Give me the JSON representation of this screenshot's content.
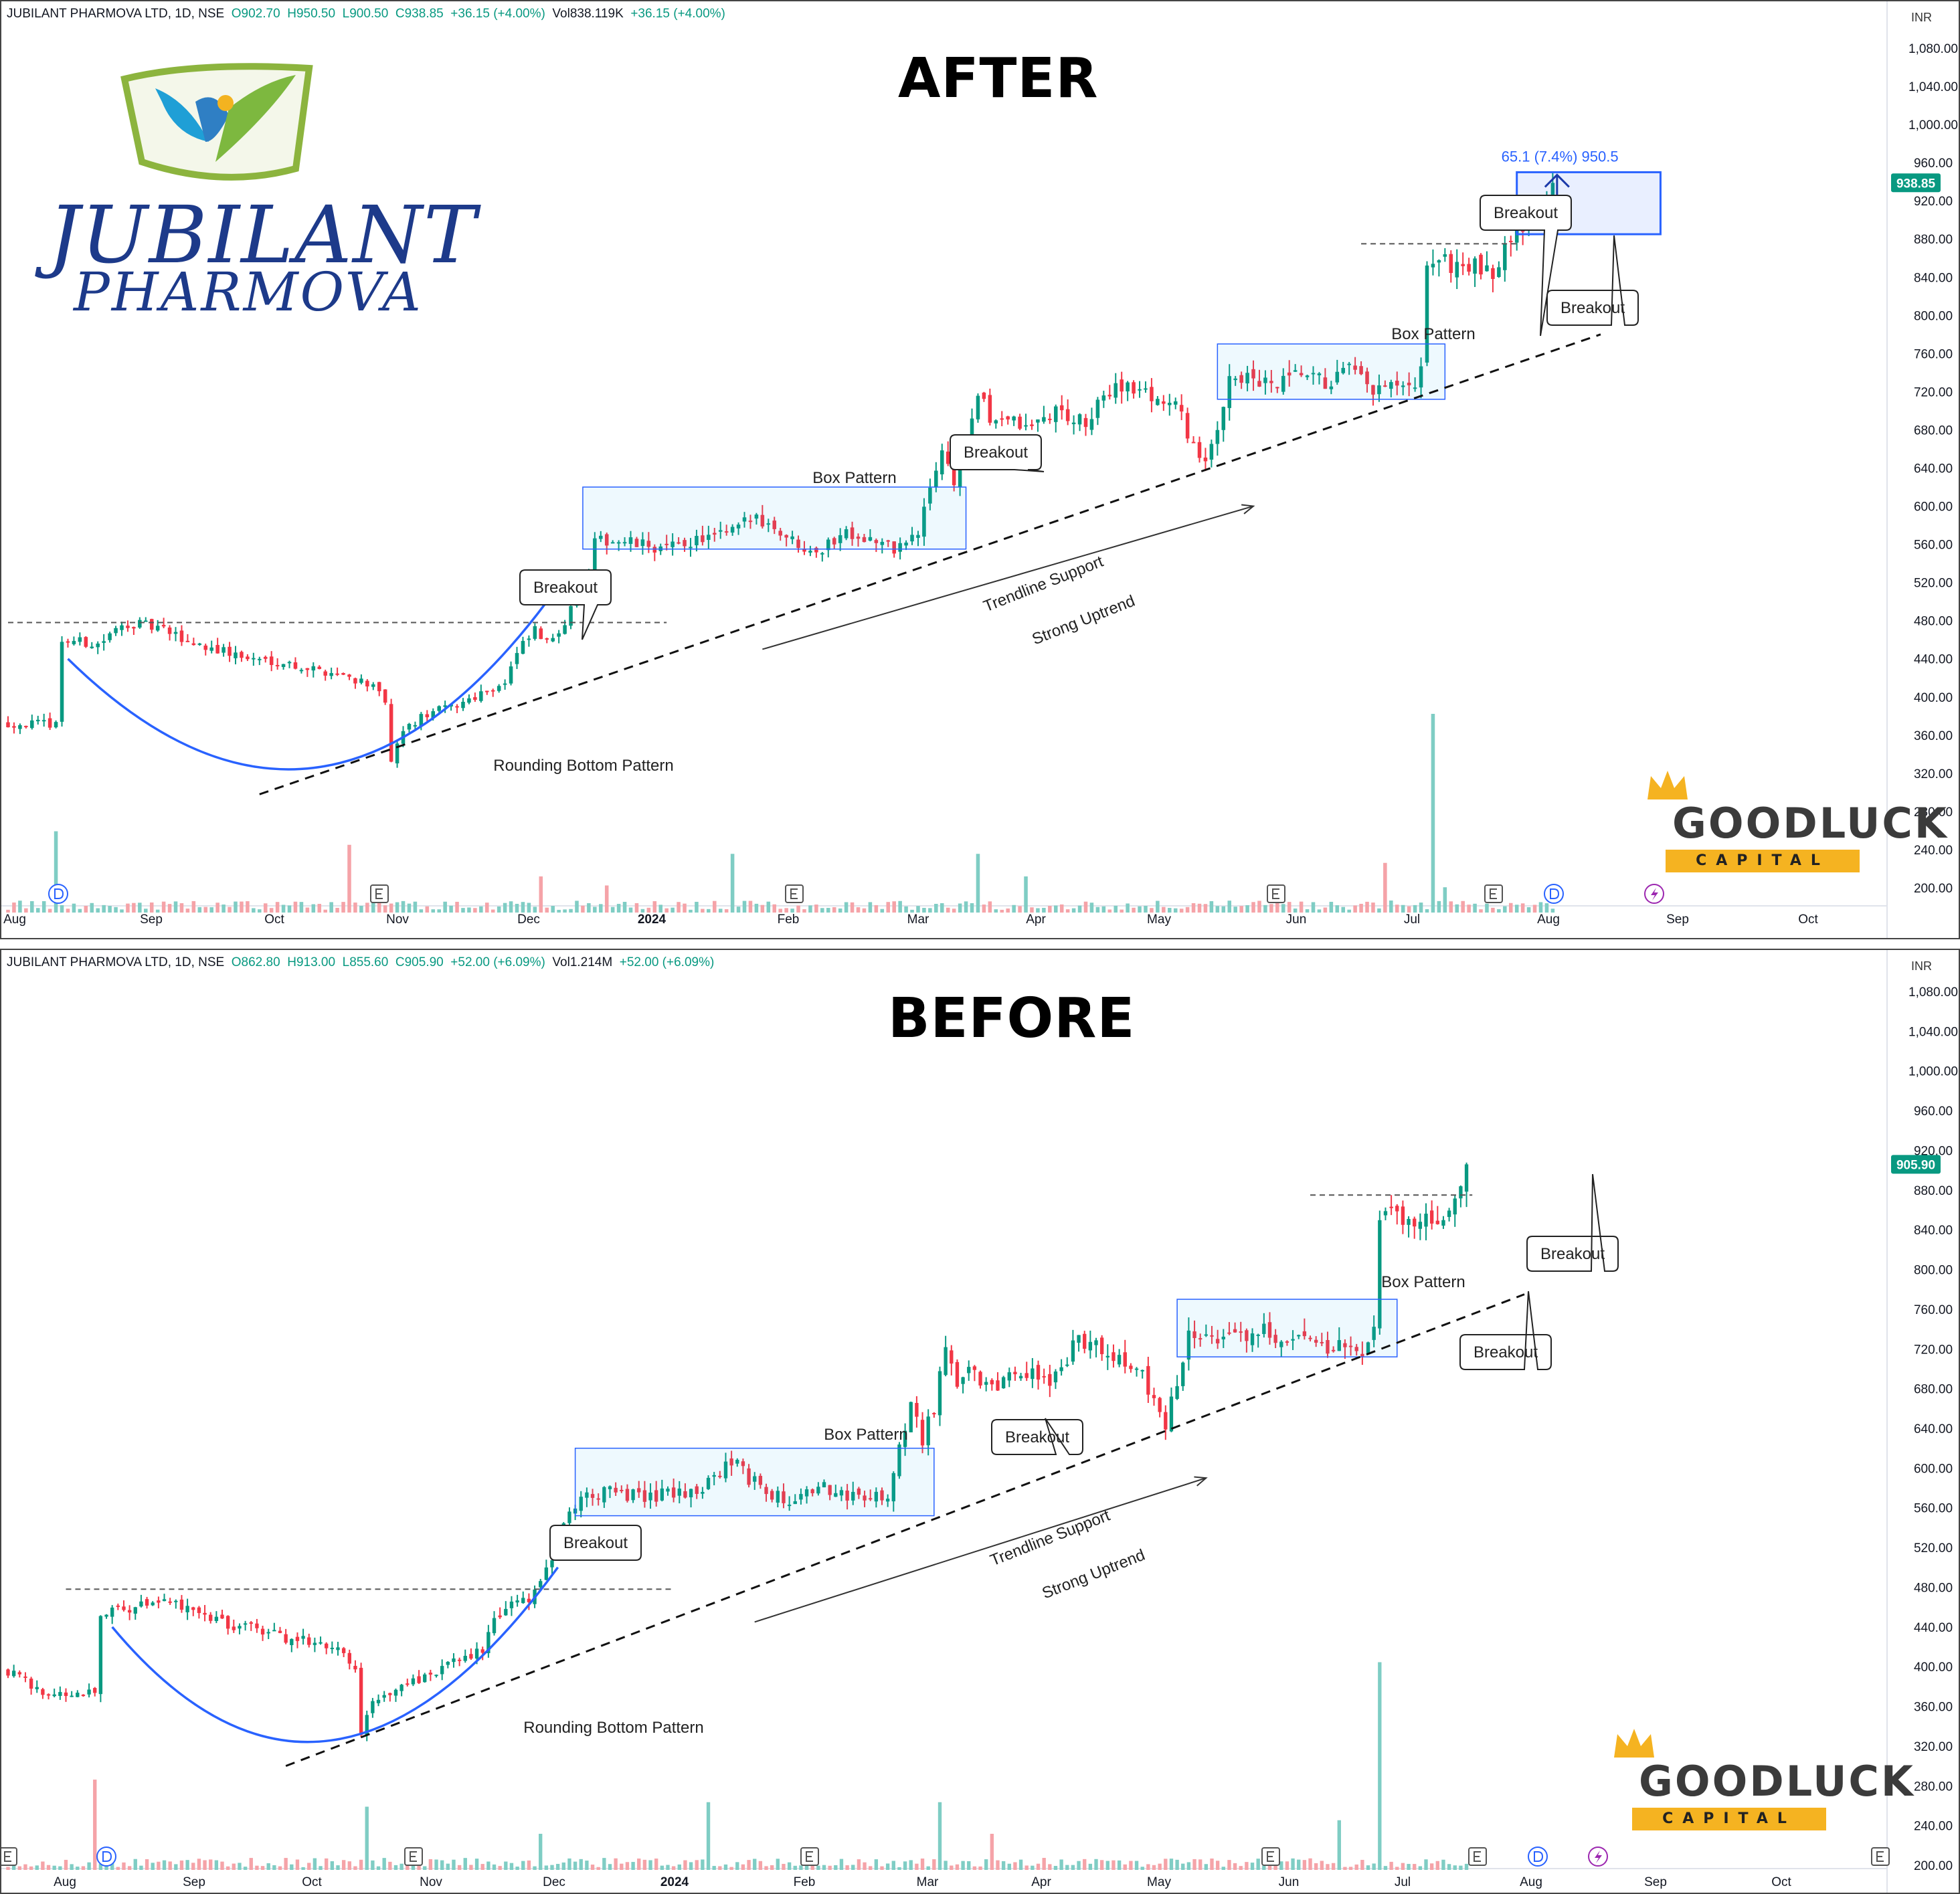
{
  "panels": {
    "after": {
      "heading": "AFTER",
      "symbol": "JUBILANT PHARMOVA LTD, 1D, NSE",
      "open": "O902.70",
      "high": "H950.50",
      "low": "L900.50",
      "close": "C938.85",
      "change": "+36.15 (+4.00%)",
      "volume": "Vol838.119K",
      "volume_change": "+36.15 (+4.00%)",
      "last_price": "938.85",
      "measure_label": "65.1 (7.4%) 950.5"
    },
    "before": {
      "heading": "BEFORE",
      "symbol": "JUBILANT PHARMOVA LTD, 1D, NSE",
      "open": "O862.80",
      "high": "H913.00",
      "low": "L855.60",
      "close": "C905.90",
      "change": "+52.00 (+6.09%)",
      "volume": "Vol1.214M",
      "volume_change": "+52.00 (+6.09%)",
      "last_price": "905.90"
    }
  },
  "logo": {
    "line1": "JUBILANT",
    "line2": "PHARMOVA"
  },
  "watermark": {
    "line1": "GOODLUCK",
    "line2": "CAPITAL"
  },
  "colors": {
    "up": "#089981",
    "down": "#f23645",
    "accent": "#2962ff",
    "volume_up": "#7fcdc4",
    "volume_down": "#f5a3a8"
  },
  "chart_data": [
    {
      "type": "candlestick",
      "panel": "after",
      "currency": "INR",
      "y_ticks": [
        "1,080.00",
        "1,040.00",
        "1,000.00",
        "960.00",
        "920.00",
        "880.00",
        "840.00",
        "800.00",
        "760.00",
        "720.00",
        "680.00",
        "640.00",
        "600.00",
        "560.00",
        "520.00",
        "480.00",
        "440.00",
        "400.00",
        "360.00",
        "320.00",
        "280.00",
        "240.00",
        "200.00"
      ],
      "ylim": [
        190,
        1095
      ],
      "x_ticks": [
        "Aug",
        "Sep",
        "Oct",
        "Nov",
        "Dec",
        "2024",
        "Feb",
        "Mar",
        "Apr",
        "May",
        "Jun",
        "Jul",
        "Aug",
        "Sep",
        "Oct"
      ],
      "close_path": [
        [
          0,
          372
        ],
        [
          8,
          372
        ],
        [
          9,
          460
        ],
        [
          15,
          455
        ],
        [
          20,
          478
        ],
        [
          25,
          472
        ],
        [
          30,
          458
        ],
        [
          35,
          450
        ],
        [
          40,
          440
        ],
        [
          45,
          438
        ],
        [
          50,
          430
        ],
        [
          55,
          425
        ],
        [
          60,
          415
        ],
        [
          63,
          395
        ],
        [
          64,
          330
        ],
        [
          66,
          365
        ],
        [
          70,
          382
        ],
        [
          75,
          392
        ],
        [
          80,
          408
        ],
        [
          83,
          415
        ],
        [
          85,
          445
        ],
        [
          88,
          470
        ],
        [
          90,
          455
        ],
        [
          93,
          480
        ],
        [
          95,
          515
        ],
        [
          97,
          530
        ],
        [
          98,
          560
        ],
        [
          100,
          565
        ],
        [
          105,
          560
        ],
        [
          110,
          555
        ],
        [
          115,
          565
        ],
        [
          120,
          570
        ],
        [
          125,
          590
        ],
        [
          128,
          578
        ],
        [
          132,
          560
        ],
        [
          136,
          555
        ],
        [
          140,
          575
        ],
        [
          144,
          565
        ],
        [
          148,
          555
        ],
        [
          152,
          570
        ],
        [
          154,
          620
        ],
        [
          156,
          660
        ],
        [
          158,
          625
        ],
        [
          160,
          655
        ],
        [
          162,
          718
        ],
        [
          164,
          690
        ],
        [
          166,
          695
        ],
        [
          170,
          680
        ],
        [
          175,
          700
        ],
        [
          180,
          685
        ],
        [
          185,
          730
        ],
        [
          190,
          718
        ],
        [
          195,
          705
        ],
        [
          198,
          665
        ],
        [
          200,
          640
        ],
        [
          202,
          680
        ],
        [
          204,
          740
        ],
        [
          208,
          730
        ],
        [
          212,
          725
        ],
        [
          216,
          738
        ],
        [
          220,
          728
        ],
        [
          224,
          742
        ],
        [
          228,
          720
        ],
        [
          232,
          725
        ],
        [
          235,
          718
        ],
        [
          236,
          740
        ],
        [
          237,
          858
        ],
        [
          240,
          855
        ],
        [
          245,
          850
        ],
        [
          248,
          838
        ],
        [
          250,
          880
        ],
        [
          252,
          895
        ],
        [
          255,
          905
        ],
        [
          258,
          938.85
        ]
      ],
      "annotations": [
        {
          "type": "label",
          "text": "Breakout"
        },
        {
          "type": "label",
          "text": "Breakout"
        },
        {
          "type": "label",
          "text": "Breakout"
        },
        {
          "type": "label",
          "text": "Breakout"
        },
        {
          "type": "label",
          "text": "Box Pattern"
        },
        {
          "type": "label",
          "text": "Box Pattern"
        },
        {
          "type": "label",
          "text": "Trendline Support"
        },
        {
          "type": "label",
          "text": "Strong Uptrend"
        },
        {
          "type": "label",
          "text": "Rounding Bottom Pattern"
        }
      ],
      "boxes": [
        {
          "name": "box-pattern-1",
          "x0": 96,
          "x1": 160,
          "y_low": 555,
          "y_high": 620
        },
        {
          "name": "box-pattern-2",
          "x0": 202,
          "x1": 240,
          "y_low": 712,
          "y_high": 770
        },
        {
          "name": "target-zone",
          "x0": 252,
          "x1": 276,
          "y_low": 885,
          "y_high": 950
        }
      ],
      "resistance_lines": [
        {
          "x0": 0,
          "x1": 110,
          "y": 478
        },
        {
          "x0": 226,
          "x1": 252,
          "y": 875
        }
      ],
      "trendline": {
        "x0": 42,
        "y0": 298,
        "x1": 266,
        "y1": 780
      },
      "uptrend_arrow": {
        "x0": 126,
        "y0": 450,
        "x1": 208,
        "y1": 600
      },
      "rounding_curve": {
        "x0": 10,
        "x_mid": 52,
        "x1": 90,
        "y_start": 440,
        "y_mid": 322,
        "y_end": 500
      },
      "volume": {
        "spikes": [
          [
            8,
            290
          ],
          [
            57,
            275
          ],
          [
            89,
            240
          ],
          [
            100,
            230
          ],
          [
            121,
            265
          ],
          [
            162,
            265
          ],
          [
            170,
            240
          ],
          [
            230,
            255
          ],
          [
            238,
            420
          ],
          [
            240,
            228
          ]
        ]
      }
    },
    {
      "type": "candlestick",
      "panel": "before",
      "currency": "INR",
      "y_ticks": [
        "1,080.00",
        "1,040.00",
        "1,000.00",
        "960.00",
        "920.00",
        "880.00",
        "840.00",
        "800.00",
        "760.00",
        "720.00",
        "680.00",
        "640.00",
        "600.00",
        "560.00",
        "520.00",
        "480.00",
        "440.00",
        "400.00",
        "360.00",
        "320.00",
        "280.00",
        "240.00",
        "200.00"
      ],
      "ylim": [
        195,
        1095
      ],
      "x_ticks": [
        "Aug",
        "Sep",
        "Oct",
        "Nov",
        "Dec",
        "2024",
        "Feb",
        "Mar",
        "Apr",
        "May",
        "Jun",
        "Jul",
        "Aug",
        "Sep",
        "Oct"
      ],
      "close_path": [
        [
          0,
          395
        ],
        [
          8,
          370
        ],
        [
          15,
          375
        ],
        [
          16,
          455
        ],
        [
          22,
          460
        ],
        [
          27,
          470
        ],
        [
          32,
          455
        ],
        [
          37,
          445
        ],
        [
          42,
          438
        ],
        [
          47,
          430
        ],
        [
          52,
          425
        ],
        [
          57,
          418
        ],
        [
          60,
          395
        ],
        [
          61,
          335
        ],
        [
          63,
          365
        ],
        [
          68,
          378
        ],
        [
          73,
          392
        ],
        [
          78,
          408
        ],
        [
          82,
          418
        ],
        [
          84,
          448
        ],
        [
          88,
          470
        ],
        [
          90,
          462
        ],
        [
          93,
          495
        ],
        [
          95,
          530
        ],
        [
          98,
          560
        ],
        [
          100,
          575
        ],
        [
          105,
          575
        ],
        [
          110,
          570
        ],
        [
          115,
          575
        ],
        [
          120,
          580
        ],
        [
          125,
          610
        ],
        [
          128,
          588
        ],
        [
          132,
          575
        ],
        [
          136,
          565
        ],
        [
          140,
          580
        ],
        [
          144,
          575
        ],
        [
          148,
          568
        ],
        [
          152,
          575
        ],
        [
          154,
          620
        ],
        [
          156,
          660
        ],
        [
          158,
          630
        ],
        [
          160,
          660
        ],
        [
          162,
          718
        ],
        [
          164,
          690
        ],
        [
          166,
          695
        ],
        [
          170,
          680
        ],
        [
          175,
          700
        ],
        [
          180,
          685
        ],
        [
          185,
          730
        ],
        [
          190,
          718
        ],
        [
          195,
          705
        ],
        [
          198,
          668
        ],
        [
          200,
          640
        ],
        [
          202,
          690
        ],
        [
          204,
          738
        ],
        [
          208,
          730
        ],
        [
          212,
          728
        ],
        [
          216,
          740
        ],
        [
          220,
          728
        ],
        [
          224,
          742
        ],
        [
          228,
          720
        ],
        [
          232,
          725
        ],
        [
          235,
          718
        ],
        [
          236,
          740
        ],
        [
          237,
          860
        ],
        [
          240,
          852
        ],
        [
          245,
          850
        ],
        [
          248,
          840
        ],
        [
          250,
          870
        ],
        [
          252,
          905.9
        ]
      ],
      "annotations": [
        {
          "type": "label",
          "text": "Breakout"
        },
        {
          "type": "label",
          "text": "Breakout"
        },
        {
          "type": "label",
          "text": "Breakout"
        },
        {
          "type": "label",
          "text": "Breakout"
        },
        {
          "type": "label",
          "text": "Box Pattern"
        },
        {
          "type": "label",
          "text": "Box Pattern"
        },
        {
          "type": "label",
          "text": "Trendline Support"
        },
        {
          "type": "label",
          "text": "Strong Uptrend"
        },
        {
          "type": "label",
          "text": "Rounding Bottom Pattern"
        }
      ],
      "boxes": [
        {
          "name": "box-pattern-1",
          "x0": 98,
          "x1": 160,
          "y_low": 552,
          "y_high": 620
        },
        {
          "name": "box-pattern-2",
          "x0": 202,
          "x1": 240,
          "y_low": 712,
          "y_high": 770
        }
      ],
      "resistance_lines": [
        {
          "x0": 10,
          "x1": 115,
          "y": 478
        },
        {
          "x0": 225,
          "x1": 253,
          "y": 875
        }
      ],
      "trendline": {
        "x0": 48,
        "y0": 300,
        "x1": 262,
        "y1": 775
      },
      "uptrend_arrow": {
        "x0": 129,
        "y0": 445,
        "x1": 207,
        "y1": 590
      },
      "rounding_curve": {
        "x0": 18,
        "x_mid": 55,
        "x1": 95,
        "y_start": 440,
        "y_mid": 322,
        "y_end": 500
      },
      "volume": {
        "spikes": [
          [
            15,
            300
          ],
          [
            62,
            270
          ],
          [
            92,
            240
          ],
          [
            121,
            275
          ],
          [
            161,
            275
          ],
          [
            170,
            240
          ],
          [
            230,
            255
          ],
          [
            237,
            430
          ]
        ]
      }
    }
  ]
}
